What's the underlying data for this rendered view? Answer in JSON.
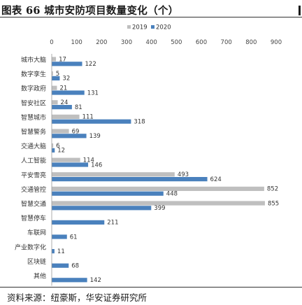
{
  "header": {
    "title": "图表 66 城市安防项目数量变化（个）"
  },
  "footer": {
    "source": "资料来源：纽豪斯，华安证券研究所"
  },
  "chart_data": {
    "type": "bar",
    "orientation": "horizontal",
    "title": "",
    "xlabel": "",
    "ylabel": "",
    "xlim": [
      0,
      900
    ],
    "ticks": [
      0,
      100,
      200,
      300,
      400,
      500,
      600,
      700,
      800,
      900
    ],
    "legend_position": "top-center",
    "grid": false,
    "categories": [
      "城市大脑",
      "数字孪生",
      "数字政府",
      "智安社区",
      "智慧城市",
      "智慧警务",
      "交通大脑",
      "人工智能",
      "平安雪亮",
      "交通管控",
      "智慧交通",
      "智慧停车",
      "车联网",
      "产业数字化",
      "区块链",
      "其他"
    ],
    "series": [
      {
        "name": "2019",
        "color": "#bfbfbf",
        "values": [
          17,
          5,
          21,
          24,
          111,
          69,
          6,
          114,
          493,
          852,
          855,
          null,
          null,
          null,
          null,
          null
        ]
      },
      {
        "name": "2020",
        "color": "#4a81bd",
        "values": [
          122,
          32,
          131,
          81,
          318,
          139,
          12,
          146,
          624,
          448,
          399,
          211,
          61,
          11,
          68,
          142
        ]
      }
    ]
  }
}
